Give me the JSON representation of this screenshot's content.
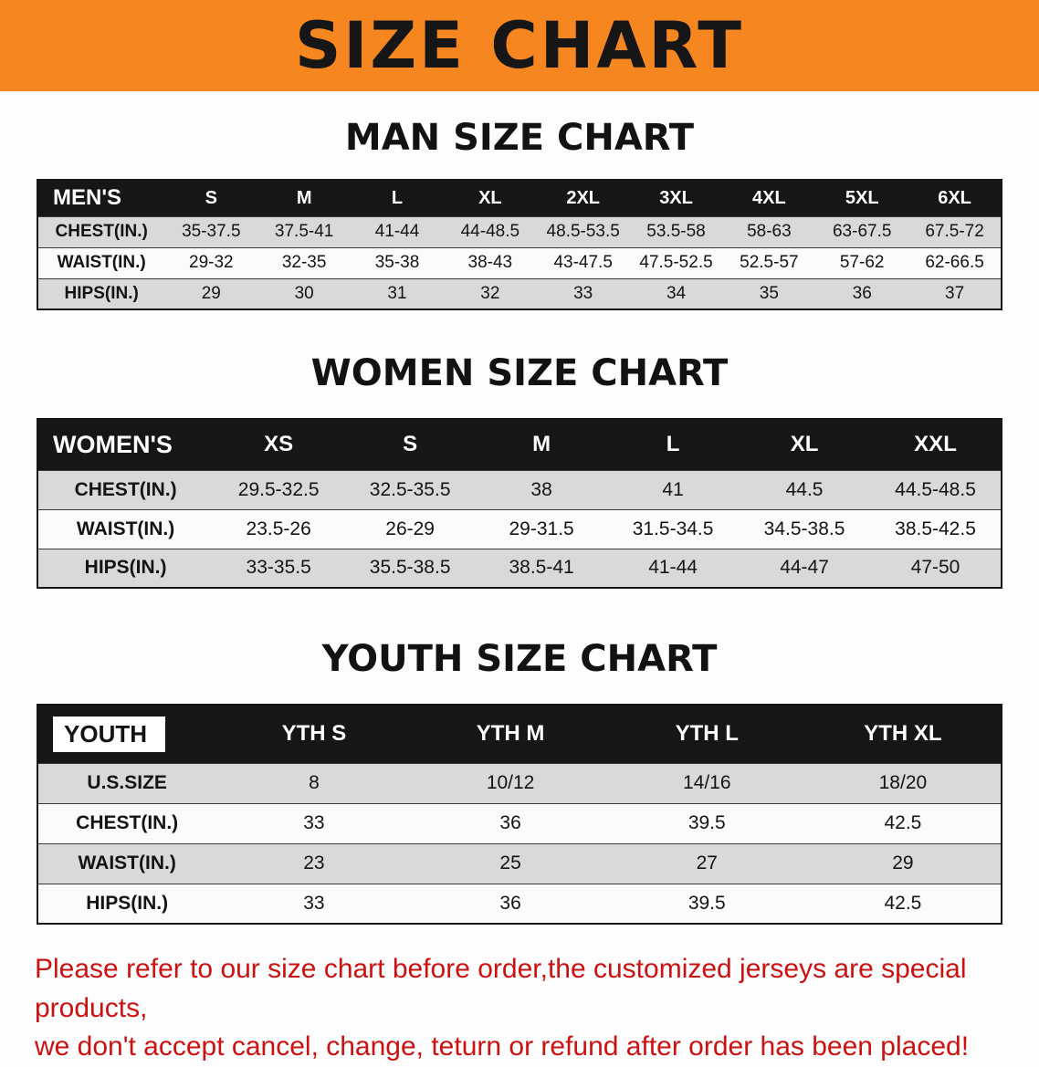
{
  "banner": {
    "title": "SIZE CHART"
  },
  "men": {
    "heading": "MAN SIZE CHART",
    "table": {
      "header": [
        "MEN'S",
        "S",
        "M",
        "L",
        "XL",
        "2XL",
        "3XL",
        "4XL",
        "5XL",
        "6XL"
      ],
      "rows": [
        [
          "CHEST(IN.)",
          "35-37.5",
          "37.5-41",
          "41-44",
          "44-48.5",
          "48.5-53.5",
          "53.5-58",
          "58-63",
          "63-67.5",
          "67.5-72"
        ],
        [
          "WAIST(IN.)",
          "29-32",
          "32-35",
          "35-38",
          "38-43",
          "43-47.5",
          "47.5-52.5",
          "52.5-57",
          "57-62",
          "62-66.5"
        ],
        [
          "HIPS(IN.)",
          "29",
          "30",
          "31",
          "32",
          "33",
          "34",
          "35",
          "36",
          "37"
        ]
      ]
    }
  },
  "women": {
    "heading": "WOMEN SIZE CHART",
    "table": {
      "header": [
        "WOMEN'S",
        "XS",
        "S",
        "M",
        "L",
        "XL",
        "XXL"
      ],
      "rows": [
        [
          "CHEST(IN.)",
          "29.5-32.5",
          "32.5-35.5",
          "38",
          "41",
          "44.5",
          "44.5-48.5"
        ],
        [
          "WAIST(IN.)",
          "23.5-26",
          "26-29",
          "29-31.5",
          "31.5-34.5",
          "34.5-38.5",
          "38.5-42.5"
        ],
        [
          "HIPS(IN.)",
          "33-35.5",
          "35.5-38.5",
          "38.5-41",
          "41-44",
          "44-47",
          "47-50"
        ]
      ]
    }
  },
  "youth": {
    "heading": "YOUTH SIZE CHART",
    "table": {
      "header": [
        "YOUTH",
        "YTH S",
        "YTH M",
        "YTH L",
        "YTH XL"
      ],
      "rows": [
        [
          "U.S.SIZE",
          "8",
          "10/12",
          "14/16",
          "18/20"
        ],
        [
          "CHEST(IN.)",
          "33",
          "36",
          "39.5",
          "42.5"
        ],
        [
          "WAIST(IN.)",
          "23",
          "25",
          "27",
          "29"
        ],
        [
          "HIPS(IN.)",
          "33",
          "36",
          "39.5",
          "42.5"
        ]
      ]
    }
  },
  "footer": {
    "line1": "Please refer to our size chart before order,the customized jerseys are special products,",
    "line2": "we don't accept cancel, change, teturn or refund after order has been placed!"
  },
  "colors": {
    "banner_bg": "#f6861f",
    "table_header_bg": "#161616",
    "row_alt_gray": "#d9d9d9",
    "footer_text": "#cc1111"
  }
}
